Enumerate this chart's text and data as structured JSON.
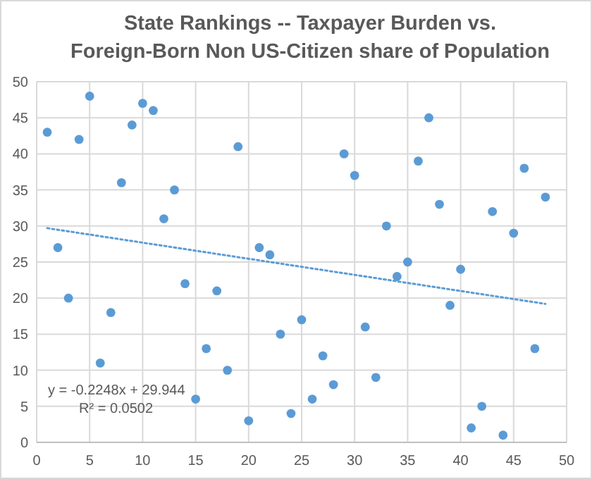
{
  "chart_data": {
    "type": "scatter",
    "title": "State Rankings -- Taxpayer Burden vs.\nForeign-Born Non US-Citizen share of Population",
    "xlim": [
      0,
      50
    ],
    "ylim": [
      0,
      50
    ],
    "xticks": [
      0,
      5,
      10,
      15,
      20,
      25,
      30,
      35,
      40,
      45,
      50
    ],
    "yticks": [
      0,
      5,
      10,
      15,
      20,
      25,
      30,
      35,
      40,
      45,
      50
    ],
    "grid": true,
    "annotations": [
      "y = -0.2248x + 29.944",
      "R² = 0.0502"
    ],
    "series": [
      {
        "color": "#5b9bd5",
        "marker": "circle",
        "x": [
          1,
          2,
          3,
          4,
          5,
          6,
          7,
          8,
          9,
          10,
          11,
          12,
          13,
          14,
          15,
          16,
          17,
          18,
          19,
          20,
          21,
          22,
          23,
          24,
          25,
          26,
          27,
          28,
          29,
          30,
          31,
          32,
          33,
          34,
          35,
          36,
          37,
          38,
          39,
          40,
          41,
          42,
          43,
          44,
          45,
          46,
          47,
          48
        ],
        "values": [
          43,
          27,
          20,
          42,
          48,
          11,
          18,
          36,
          44,
          47,
          46,
          31,
          35,
          22,
          6,
          13,
          21,
          10,
          41,
          3,
          27,
          26,
          15,
          4,
          17,
          6,
          12,
          8,
          40,
          37,
          16,
          9,
          30,
          23,
          25,
          39,
          45,
          33,
          19,
          24,
          2,
          5,
          32,
          1,
          29,
          38,
          13,
          34
        ]
      },
      {
        "type": "line",
        "color": "#5b9bd5",
        "line_style": "dotted",
        "x": [
          1,
          48
        ],
        "values": [
          29.7,
          19.2
        ]
      }
    ]
  }
}
